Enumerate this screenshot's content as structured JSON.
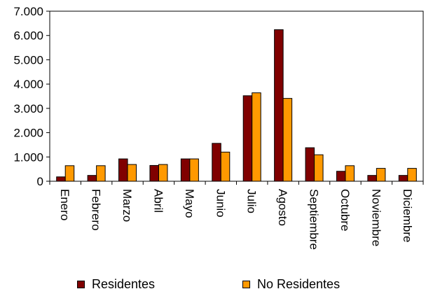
{
  "chart_data": {
    "type": "bar",
    "categories": [
      "Enero",
      "Febrero",
      "Marzo",
      "Abril",
      "Mayo",
      "Junio",
      "Julio",
      "Agosto",
      "Septiembre",
      "Octubre",
      "Noviembre",
      "Diciembre"
    ],
    "series": [
      {
        "name": "Residentes",
        "color": "#800000",
        "values": [
          180,
          240,
          920,
          650,
          920,
          1560,
          3520,
          6240,
          1380,
          410,
          240,
          240
        ]
      },
      {
        "name": "No Residentes",
        "color": "#ff9900",
        "values": [
          640,
          640,
          690,
          690,
          920,
          1200,
          3640,
          3410,
          1090,
          640,
          530,
          530
        ]
      }
    ],
    "y_ticks": [
      "0",
      "1.000",
      "2.000",
      "3.000",
      "4.000",
      "5.000",
      "6.000",
      "7.000"
    ],
    "ylim": [
      0,
      7000
    ],
    "grid": false,
    "legend_position": "bottom"
  }
}
